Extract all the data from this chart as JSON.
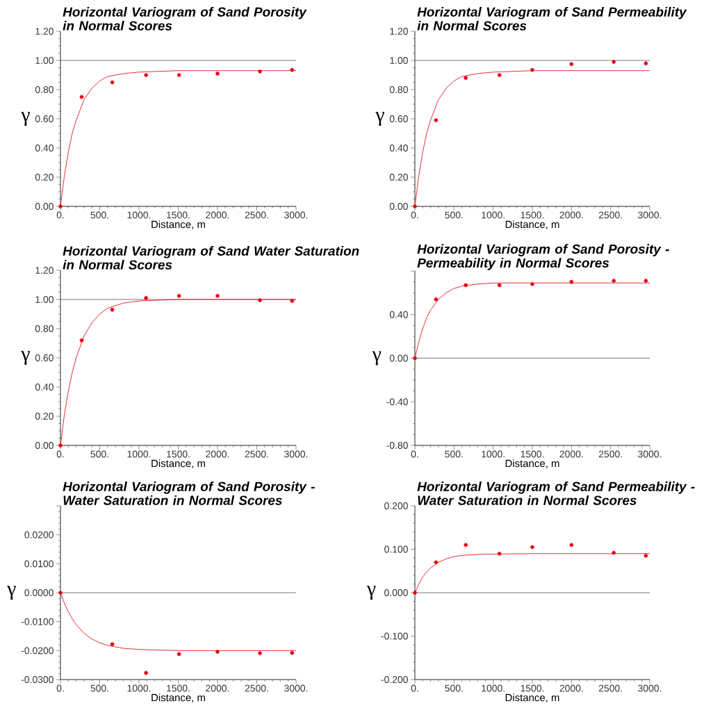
{
  "chart_data": [
    {
      "type": "scatter",
      "marker": "circle",
      "title": "Horizontal Variogram of Sand Porosity in Normal Scores",
      "xlabel": "Distance, m",
      "ylabel": "γ",
      "xlim": [
        0,
        3000
      ],
      "xticks": [
        {
          "value": 0,
          "label": "0."
        },
        {
          "value": 500,
          "label": "500."
        },
        {
          "value": 1000,
          "label": "1000."
        },
        {
          "value": 1500,
          "label": "1500."
        },
        {
          "value": 2000,
          "label": "2000."
        },
        {
          "value": 2500,
          "label": "2500."
        },
        {
          "value": 3000,
          "label": "3000."
        }
      ],
      "ylim": [
        0,
        1.2
      ],
      "yticks": [
        {
          "value": 0,
          "label": "0.00"
        },
        {
          "value": 0.2,
          "label": "0.20"
        },
        {
          "value": 0.4,
          "label": "0.40"
        },
        {
          "value": 0.6,
          "label": "0.60"
        },
        {
          "value": 0.8,
          "label": "0.80"
        },
        {
          "value": 1.0,
          "label": "1.00"
        },
        {
          "value": 1.2,
          "label": "1.20"
        }
      ],
      "ref_lines": [
        {
          "axis": "y",
          "value": 1.0,
          "color": "#555555"
        }
      ],
      "series": [
        {
          "type": "line",
          "marker": "none",
          "color": "#e31a1c",
          "x": [
            0,
            50,
            100,
            150,
            200,
            300,
            400,
            500,
            600,
            800,
            1000,
            1500,
            2000,
            3000
          ],
          "values": [
            0,
            0.21,
            0.37,
            0.5,
            0.59,
            0.73,
            0.81,
            0.86,
            0.89,
            0.91,
            0.92,
            0.93,
            0.93,
            0.93
          ]
        },
        {
          "color": "#e30613",
          "x": [
            0,
            270,
            660,
            1090,
            1510,
            2000,
            2540,
            2950
          ],
          "values": [
            0,
            0.75,
            0.85,
            0.9,
            0.9,
            0.91,
            0.925,
            0.935
          ]
        }
      ]
    },
    {
      "type": "scatter",
      "marker": "circle",
      "title": "Horizontal Variogram of Sand Permeability in Normal Scores",
      "xlabel": "Distance, m",
      "ylabel": "γ",
      "xlim": [
        0,
        3000
      ],
      "xticks": [
        {
          "value": 0,
          "label": "0."
        },
        {
          "value": 500,
          "label": "500."
        },
        {
          "value": 1000,
          "label": "1000."
        },
        {
          "value": 1500,
          "label": "1500."
        },
        {
          "value": 2000,
          "label": "2000."
        },
        {
          "value": 2500,
          "label": "2500."
        },
        {
          "value": 3000,
          "label": "3000."
        }
      ],
      "ylim": [
        0,
        1.2
      ],
      "yticks": [
        {
          "value": 0,
          "label": "0.00"
        },
        {
          "value": 0.2,
          "label": "0.20"
        },
        {
          "value": 0.4,
          "label": "0.40"
        },
        {
          "value": 0.6,
          "label": "0.60"
        },
        {
          "value": 0.8,
          "label": "0.80"
        },
        {
          "value": 1.0,
          "label": "1.00"
        },
        {
          "value": 1.2,
          "label": "1.20"
        }
      ],
      "ref_lines": [
        {
          "axis": "y",
          "value": 1.0,
          "color": "#555555"
        }
      ],
      "series": [
        {
          "type": "line",
          "marker": "none",
          "color": "#e31a1c",
          "x": [
            0,
            50,
            100,
            150,
            200,
            300,
            400,
            500,
            600,
            800,
            1000,
            1500,
            2000,
            3000
          ],
          "values": [
            0,
            0.21,
            0.37,
            0.5,
            0.59,
            0.73,
            0.81,
            0.86,
            0.89,
            0.91,
            0.92,
            0.93,
            0.93,
            0.93
          ]
        },
        {
          "color": "#e30613",
          "x": [
            0,
            270,
            650,
            1080,
            1500,
            2000,
            2540,
            2950
          ],
          "values": [
            0,
            0.59,
            0.88,
            0.9,
            0.935,
            0.975,
            0.99,
            0.98
          ]
        }
      ]
    },
    {
      "type": "scatter",
      "marker": "circle",
      "title": "Horizontal Variogram of Sand Water Saturation in Normal Scores",
      "xlabel": "Distance, m",
      "ylabel": "γ",
      "xlim": [
        0,
        3000
      ],
      "xticks": [
        {
          "value": 0,
          "label": "0."
        },
        {
          "value": 500,
          "label": "500."
        },
        {
          "value": 1000,
          "label": "1000."
        },
        {
          "value": 1500,
          "label": "1500."
        },
        {
          "value": 2000,
          "label": "2000."
        },
        {
          "value": 2500,
          "label": "2500."
        },
        {
          "value": 3000,
          "label": "3000."
        }
      ],
      "ylim": [
        0,
        1.2
      ],
      "yticks": [
        {
          "value": 0,
          "label": "0.00"
        },
        {
          "value": 0.2,
          "label": "0.20"
        },
        {
          "value": 0.4,
          "label": "0.40"
        },
        {
          "value": 0.6,
          "label": "0.60"
        },
        {
          "value": 0.8,
          "label": "0.80"
        },
        {
          "value": 1.0,
          "label": "1.00"
        },
        {
          "value": 1.2,
          "label": "1.20"
        }
      ],
      "ref_lines": [
        {
          "axis": "y",
          "value": 1.0,
          "color": "#555555"
        }
      ],
      "series": [
        {
          "type": "line",
          "marker": "none",
          "color": "#e31a1c",
          "x": [
            0,
            50,
            100,
            150,
            200,
            300,
            400,
            500,
            600,
            800,
            1000,
            1500,
            2000,
            3000
          ],
          "values": [
            0,
            0.21,
            0.37,
            0.5,
            0.6,
            0.75,
            0.84,
            0.9,
            0.94,
            0.975,
            0.99,
            1.0,
            1.0,
            1.0
          ]
        },
        {
          "color": "#e30613",
          "x": [
            0,
            270,
            660,
            1090,
            1510,
            2000,
            2540,
            2950
          ],
          "values": [
            0,
            0.72,
            0.93,
            1.01,
            1.025,
            1.025,
            0.995,
            0.99
          ]
        }
      ]
    },
    {
      "type": "scatter",
      "marker": "circle",
      "title": "Horizontal Variogram of Sand Porosity - Permeability in Normal Scores",
      "xlabel": "Distance, m",
      "ylabel": "γ",
      "xlim": [
        0,
        3000
      ],
      "xticks": [
        {
          "value": 0,
          "label": "0."
        },
        {
          "value": 500,
          "label": "500."
        },
        {
          "value": 1000,
          "label": "1000."
        },
        {
          "value": 1500,
          "label": "1500."
        },
        {
          "value": 2000,
          "label": "2000."
        },
        {
          "value": 2500,
          "label": "2500."
        },
        {
          "value": 3000,
          "label": "3000."
        }
      ],
      "ylim": [
        -0.8,
        0.8
      ],
      "yticks": [
        {
          "value": -0.8,
          "label": "-0.80"
        },
        {
          "value": -0.4,
          "label": "-0.40"
        },
        {
          "value": 0,
          "label": "0.00"
        },
        {
          "value": 0.4,
          "label": "0.40"
        },
        {
          "value": 0.8,
          "label": null
        }
      ],
      "ref_lines": [
        {
          "axis": "y",
          "value": 0,
          "color": "#555555"
        }
      ],
      "series": [
        {
          "type": "line",
          "marker": "none",
          "color": "#e31a1c",
          "x": [
            0,
            50,
            100,
            150,
            200,
            300,
            400,
            500,
            600,
            800,
            1000,
            1500,
            2000,
            3000
          ],
          "values": [
            0,
            0.15,
            0.27,
            0.37,
            0.44,
            0.54,
            0.6,
            0.64,
            0.66,
            0.68,
            0.69,
            0.69,
            0.69,
            0.69
          ]
        },
        {
          "color": "#e30613",
          "x": [
            0,
            270,
            650,
            1080,
            1500,
            2000,
            2540,
            2950
          ],
          "values": [
            0,
            0.54,
            0.67,
            0.67,
            0.68,
            0.7,
            0.71,
            0.71
          ]
        }
      ]
    },
    {
      "type": "scatter",
      "marker": "circle",
      "title": "Horizontal Variogram of Sand Porosity - Water Saturation in Normal Scores",
      "xlabel": "Distance, m",
      "ylabel": "γ",
      "xlim": [
        0,
        3000
      ],
      "xticks": [
        {
          "value": 0,
          "label": "0."
        },
        {
          "value": 500,
          "label": "500."
        },
        {
          "value": 1000,
          "label": "1000."
        },
        {
          "value": 1500,
          "label": "1500."
        },
        {
          "value": 2000,
          "label": "2000."
        },
        {
          "value": 2500,
          "label": "2500."
        },
        {
          "value": 3000,
          "label": "3000."
        }
      ],
      "ylim": [
        -0.03,
        0.03
      ],
      "yticks": [
        {
          "value": -0.03,
          "label": "-0.0300"
        },
        {
          "value": -0.02,
          "label": "-0.0200"
        },
        {
          "value": -0.01,
          "label": "-0.0100"
        },
        {
          "value": 0,
          "label": "0.0000"
        },
        {
          "value": 0.01,
          "label": "0.0100"
        },
        {
          "value": 0.02,
          "label": "0.0200"
        },
        {
          "value": 0.03,
          "label": null
        }
      ],
      "ref_lines": [
        {
          "axis": "y",
          "value": 0,
          "color": "#555555"
        }
      ],
      "series": [
        {
          "type": "line",
          "marker": "none",
          "color": "#e31a1c",
          "x": [
            0,
            50,
            100,
            150,
            200,
            300,
            400,
            500,
            600,
            800,
            1000,
            1500,
            2000,
            3000
          ],
          "values": [
            0,
            -0.0036,
            -0.0066,
            -0.009,
            -0.011,
            -0.014,
            -0.016,
            -0.0173,
            -0.0182,
            -0.0192,
            -0.0196,
            -0.02,
            -0.02,
            -0.02
          ]
        },
        {
          "color": "#e30613",
          "x": [
            0,
            660,
            1090,
            1510,
            2000,
            2540,
            2950
          ],
          "values": [
            0,
            -0.0178,
            -0.0277,
            -0.0212,
            -0.0204,
            -0.0209,
            -0.0208
          ]
        }
      ]
    },
    {
      "type": "scatter",
      "marker": "circle",
      "title": "Horizontal Variogram of Sand Permeability - Water Saturation in Normal Scores",
      "xlabel": "Distance, m",
      "ylabel": "γ",
      "xlim": [
        0,
        3000
      ],
      "xticks": [
        {
          "value": 0,
          "label": "0."
        },
        {
          "value": 500,
          "label": "500."
        },
        {
          "value": 1000,
          "label": "1000."
        },
        {
          "value": 1500,
          "label": "1500."
        },
        {
          "value": 2000,
          "label": "2000."
        },
        {
          "value": 2500,
          "label": "2500."
        },
        {
          "value": 3000,
          "label": "3000."
        }
      ],
      "ylim": [
        -0.2,
        0.2
      ],
      "yticks": [
        {
          "value": -0.2,
          "label": "-0.200"
        },
        {
          "value": -0.1,
          "label": "-0.100"
        },
        {
          "value": 0,
          "label": "0.000"
        },
        {
          "value": 0.1,
          "label": "0.100"
        },
        {
          "value": 0.2,
          "label": "0.200"
        }
      ],
      "ref_lines": [
        {
          "axis": "y",
          "value": 0,
          "color": "#555555"
        }
      ],
      "series": [
        {
          "type": "line",
          "marker": "none",
          "color": "#e31a1c",
          "x": [
            0,
            50,
            100,
            150,
            200,
            300,
            400,
            500,
            600,
            800,
            1000,
            1500,
            2000,
            3000
          ],
          "values": [
            0,
            0.02,
            0.036,
            0.048,
            0.057,
            0.07,
            0.078,
            0.083,
            0.086,
            0.088,
            0.089,
            0.09,
            0.09,
            0.09
          ]
        },
        {
          "color": "#e30613",
          "x": [
            0,
            270,
            650,
            1080,
            1500,
            2000,
            2540,
            2950
          ],
          "values": [
            0,
            0.07,
            0.11,
            0.09,
            0.105,
            0.11,
            0.092,
            0.085
          ]
        }
      ]
    }
  ]
}
